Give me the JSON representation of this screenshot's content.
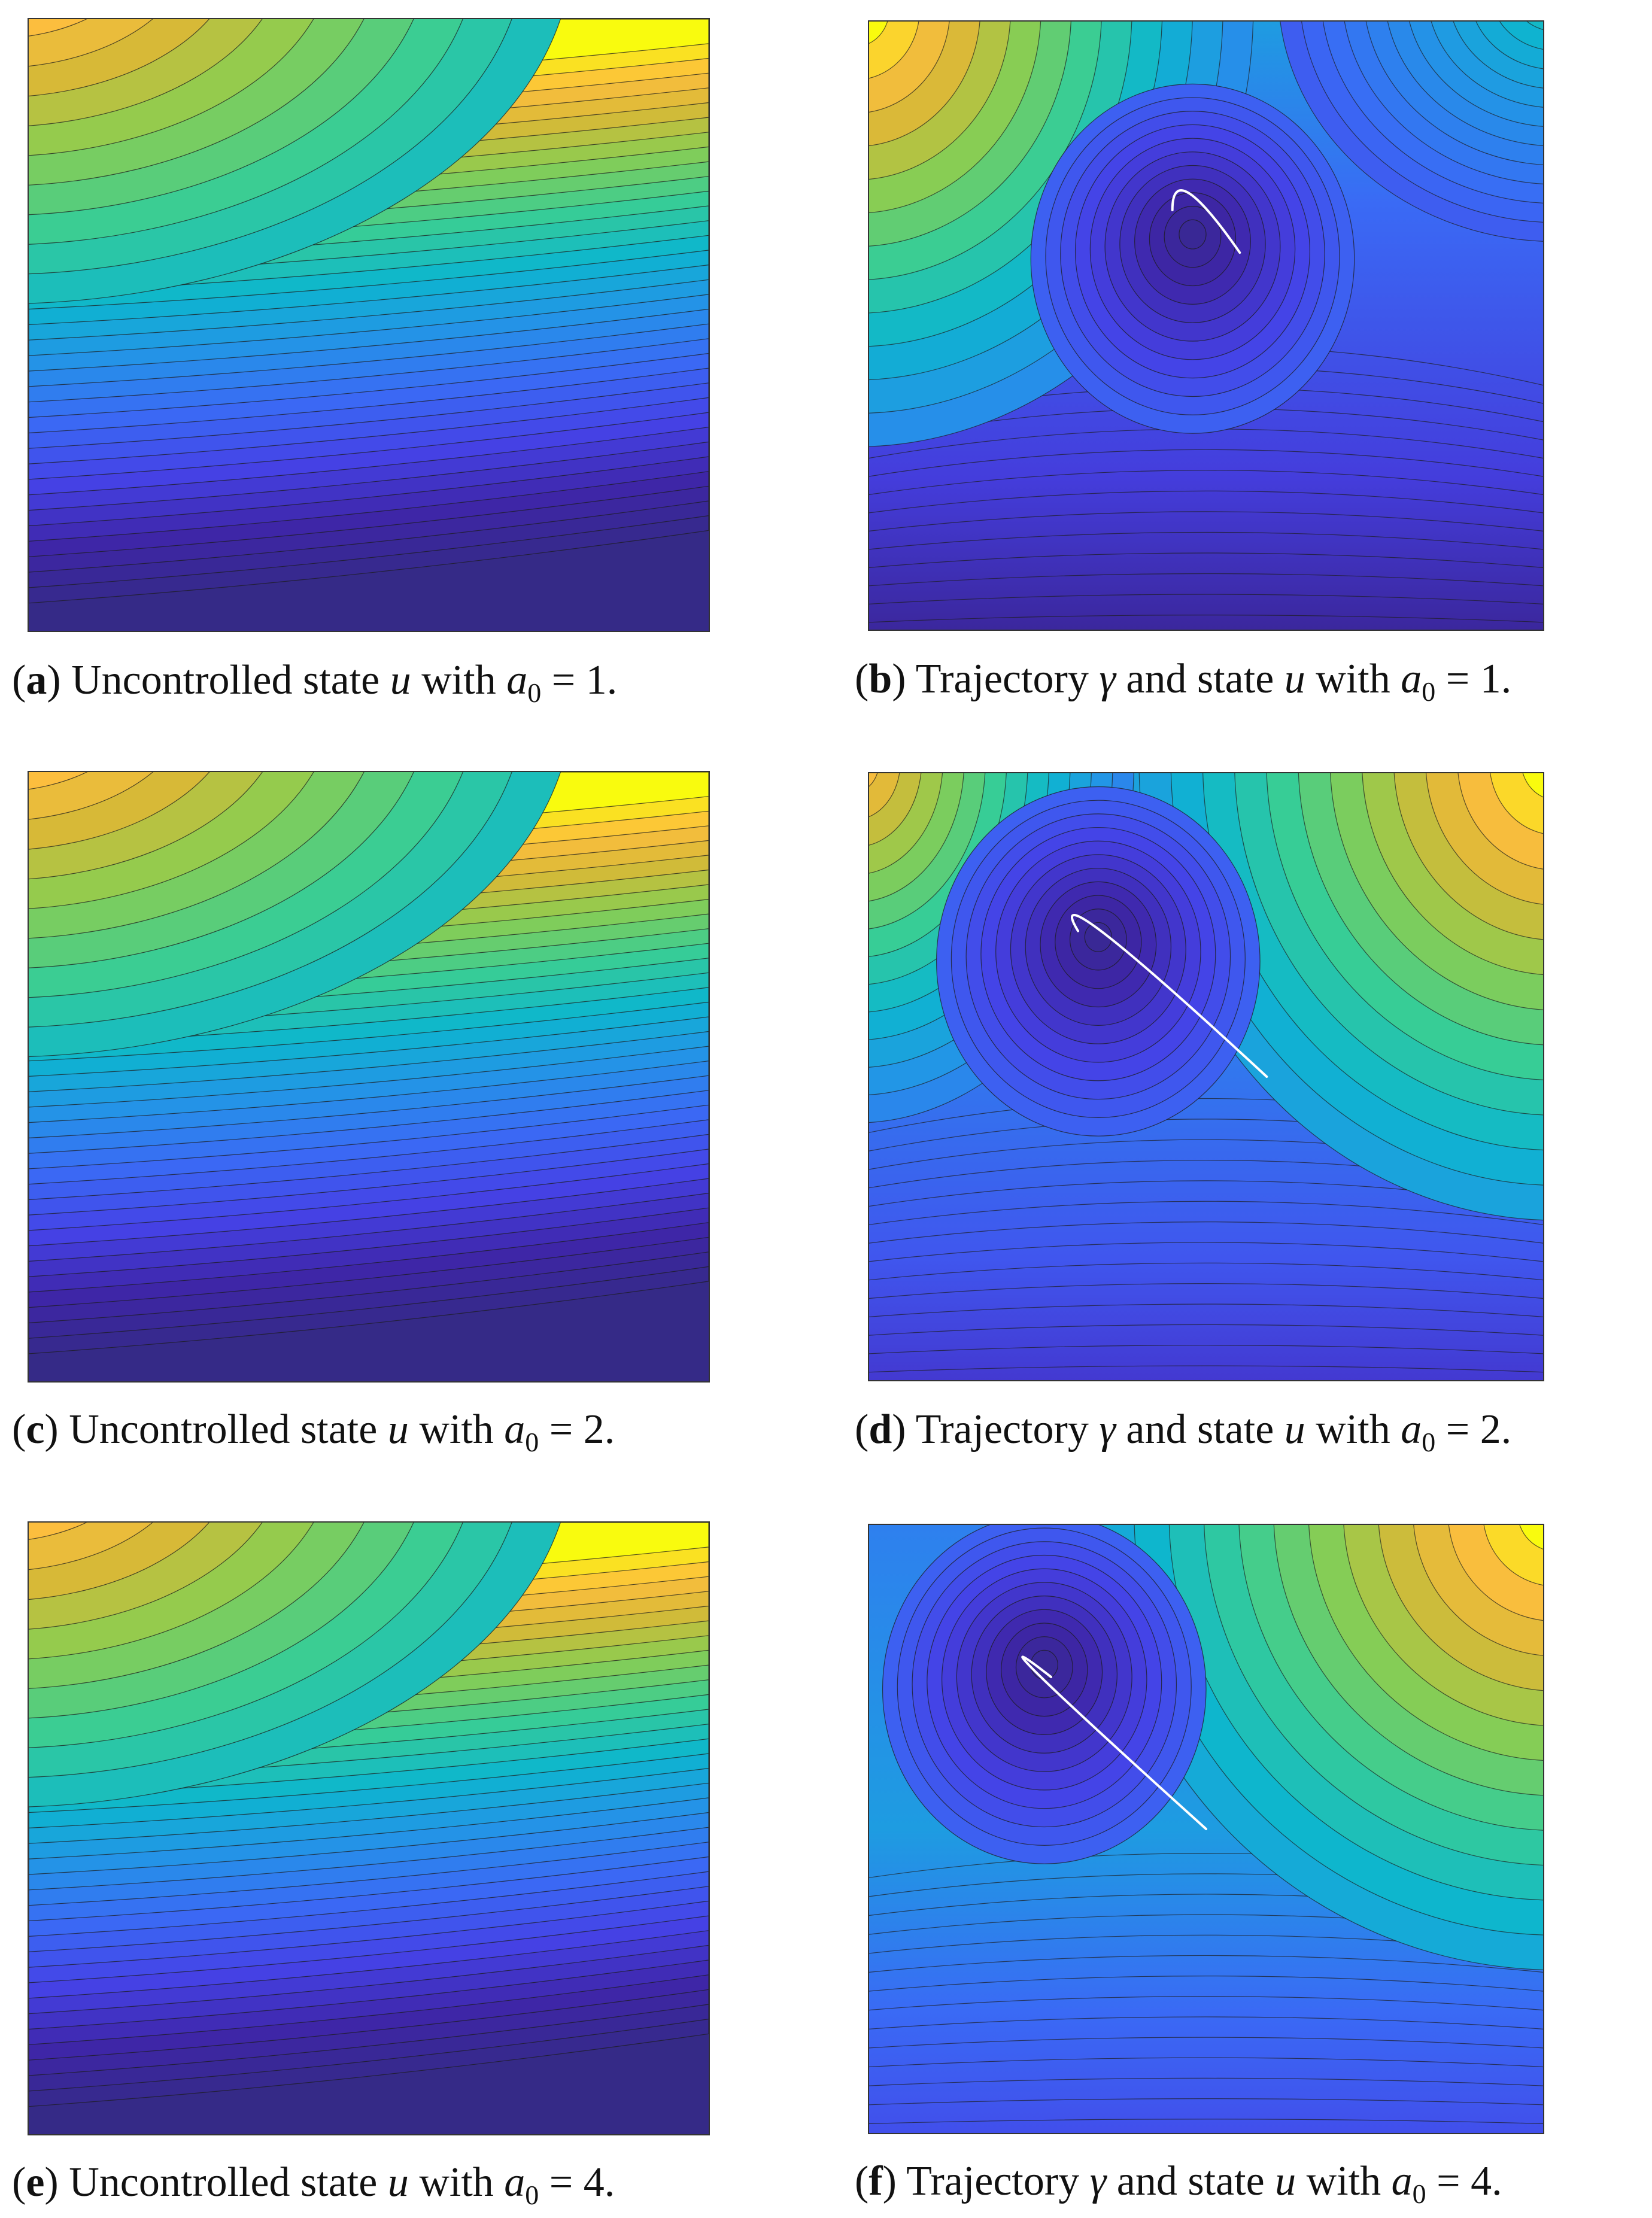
{
  "chart_data": [
    {
      "type": "heatmap",
      "subtype": "filled-contour",
      "label": "a",
      "caption": {
        "tag": "a",
        "text": "Uncontrolled state",
        "var": "u",
        "mid": "with",
        "param": "a",
        "param_sub": "0",
        "value": "1."
      },
      "a0": 1,
      "trajectory": false,
      "colormap": "parula"
    },
    {
      "type": "heatmap",
      "subtype": "filled-contour",
      "label": "b",
      "caption": {
        "tag": "b",
        "text": "Trajectory",
        "sym": "γ",
        "text2": "and state",
        "var": "u",
        "mid": "with",
        "param": "a",
        "param_sub": "0",
        "value": "1."
      },
      "a0": 1,
      "trajectory": true,
      "colormap": "parula"
    },
    {
      "type": "heatmap",
      "subtype": "filled-contour",
      "label": "c",
      "caption": {
        "tag": "c",
        "text": "Uncontrolled state",
        "var": "u",
        "mid": "with",
        "param": "a",
        "param_sub": "0",
        "value": "2."
      },
      "a0": 2,
      "trajectory": false,
      "colormap": "parula"
    },
    {
      "type": "heatmap",
      "subtype": "filled-contour",
      "label": "d",
      "caption": {
        "tag": "d",
        "text": "Trajectory",
        "sym": "γ",
        "text2": "and state",
        "var": "u",
        "mid": "with",
        "param": "a",
        "param_sub": "0",
        "value": "2."
      },
      "a0": 2,
      "trajectory": true,
      "colormap": "parula"
    },
    {
      "type": "heatmap",
      "subtype": "filled-contour",
      "label": "e",
      "caption": {
        "tag": "e",
        "text": "Uncontrolled state",
        "var": "u",
        "mid": "with",
        "param": "a",
        "param_sub": "0",
        "value": "4."
      },
      "a0": 4,
      "trajectory": false,
      "colormap": "parula"
    },
    {
      "type": "heatmap",
      "subtype": "filled-contour",
      "label": "f",
      "caption": {
        "tag": "f",
        "text": "Trajectory",
        "sym": "γ",
        "text2": "and state",
        "var": "u",
        "mid": "with",
        "param": "a",
        "param_sub": "0",
        "value": "4."
      },
      "a0": 4,
      "trajectory": true,
      "colormap": "parula"
    }
  ]
}
